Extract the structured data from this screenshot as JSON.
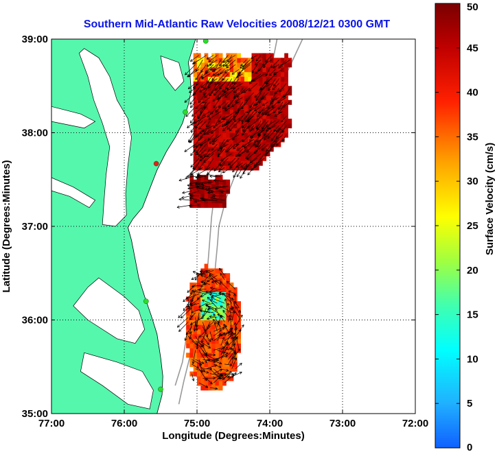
{
  "chart_data": {
    "type": "heatmap",
    "title": "Southern Mid-Atlantic Raw Velocities 2008/12/21 0300 GMT",
    "xlabel": "Longitude (Degrees:Minutes)",
    "ylabel": "Latitude (Degrees:Minutes)",
    "xlim": [
      -77.0,
      -72.0
    ],
    "ylim": [
      35.0,
      39.0
    ],
    "x_ticks": [
      {
        "value": -77,
        "label": "77:00"
      },
      {
        "value": -76,
        "label": "76:00"
      },
      {
        "value": -75,
        "label": "75:00"
      },
      {
        "value": -74,
        "label": "74:00"
      },
      {
        "value": -73,
        "label": "73:00"
      },
      {
        "value": -72,
        "label": "72:00"
      }
    ],
    "y_ticks": [
      {
        "value": 35,
        "label": "35:00"
      },
      {
        "value": 36,
        "label": "36:00"
      },
      {
        "value": 37,
        "label": "37:00"
      },
      {
        "value": 38,
        "label": "38:00"
      },
      {
        "value": 39,
        "label": "39:00"
      }
    ],
    "grid": true,
    "colorbar": {
      "label": "Surface Velocity (cm/s)",
      "range": [
        0,
        50
      ],
      "ticks": [
        {
          "value": 0,
          "label": "0"
        },
        {
          "value": 5,
          "label": "5"
        },
        {
          "value": 10,
          "label": "10"
        },
        {
          "value": 15,
          "label": "15"
        },
        {
          "value": 20,
          "label": "20"
        },
        {
          "value": 25,
          "label": "25"
        },
        {
          "value": 30,
          "label": "30"
        },
        {
          "value": 35,
          "label": "35"
        },
        {
          "value": 40,
          "label": "40"
        },
        {
          "value": 45,
          "label": "45"
        },
        {
          "value": 50,
          "label": "50"
        }
      ]
    },
    "velocity_regions": [
      {
        "name": "northern-field",
        "lon": [
          -75.05,
          -73.75
        ],
        "lat": [
          37.6,
          38.8
        ],
        "typical_speed": 48,
        "min_speed": 25,
        "direction": "southwest"
      },
      {
        "name": "isolated-patch",
        "lon": [
          -75.1,
          -74.6
        ],
        "lat": [
          37.2,
          37.5
        ],
        "typical_speed": 50,
        "min_speed": 45,
        "direction": "west"
      },
      {
        "name": "southern-field",
        "lon": [
          -75.2,
          -74.35
        ],
        "lat": [
          35.25,
          36.55
        ],
        "typical_speed": 40,
        "min_speed": 12,
        "direction": "variable"
      }
    ],
    "stations": [
      {
        "lon": -74.88,
        "lat": 38.98,
        "color": "#2ddc2d"
      },
      {
        "lon": -75.16,
        "lat": 38.22,
        "color": "#2ddc2d"
      },
      {
        "lon": -75.56,
        "lat": 37.67,
        "color": "#e61e1e"
      },
      {
        "lon": -75.7,
        "lat": 36.2,
        "color": "#2ddc2d"
      },
      {
        "lon": -75.5,
        "lat": 35.26,
        "color": "#2ddc2d"
      }
    ],
    "colors": {
      "land": "#55f7ad",
      "water": "#ffffff",
      "coastline": "#000000",
      "bathymetry": "#999999",
      "title": "#0a14e6"
    }
  }
}
